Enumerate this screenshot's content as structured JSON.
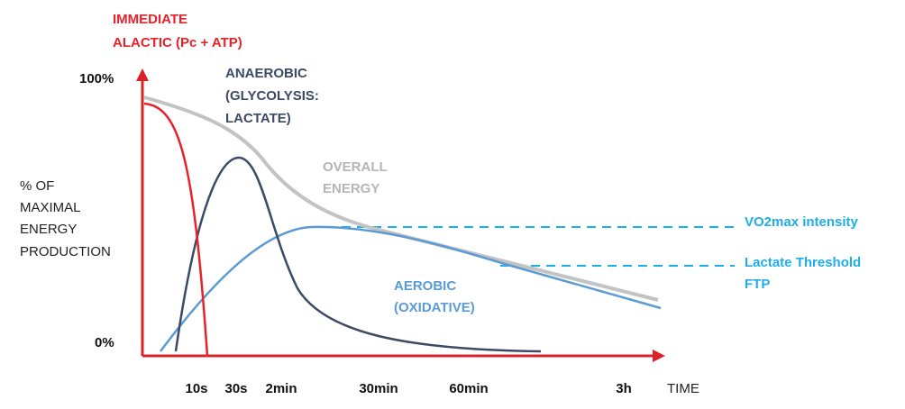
{
  "axis": {
    "y_label": [
      "% OF",
      "MAXIMAL",
      "ENERGY",
      "PRODUCTION"
    ],
    "y_top": "100%",
    "y_bottom": "0%",
    "x_label": "TIME",
    "x_ticks": [
      "10s",
      "30s",
      "2min",
      "30min",
      "60min",
      "3h"
    ]
  },
  "curves": [
    {
      "label": [
        "IMMEDIATE",
        "ALACTIC (Pc + ATP)"
      ]
    },
    {
      "label": [
        "ANAEROBIC",
        "(GLYCOLYSIS:",
        "LACTATE)"
      ]
    },
    {
      "label": [
        "OVERALL",
        "ENERGY"
      ]
    },
    {
      "label": [
        "AEROBIC",
        "(OXIDATIVE)"
      ]
    }
  ],
  "thresholds": [
    "VO2max intensity",
    "Lactate Threshold",
    "FTP"
  ]
}
